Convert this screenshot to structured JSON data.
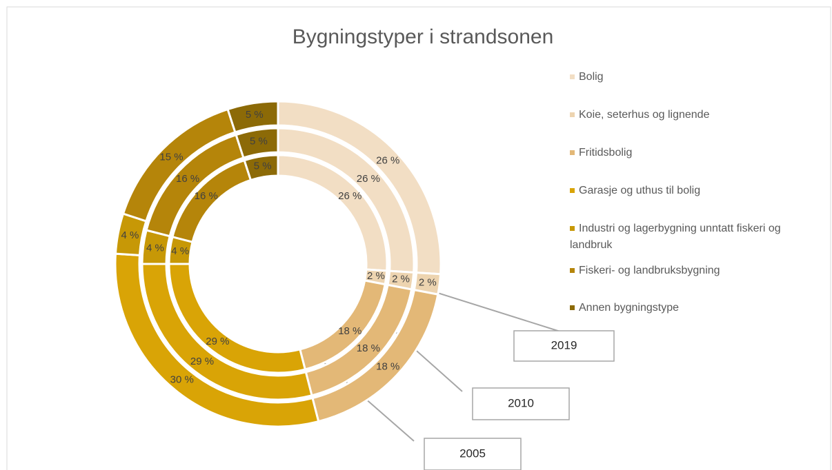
{
  "chart_data": {
    "type": "donut",
    "title": "Bygningstyper i strandsonen",
    "categories": [
      "Bolig",
      "Koie, seterhus og lignende",
      "Fritidsbolig",
      "Garasje og uthus til bolig",
      "Industri og lagerbygning unntatt fiskeri og landbruk",
      "Fiskeri- og landbruksbygning",
      "Annen bygningstype"
    ],
    "colors": [
      "#f2dec4",
      "#edd4b0",
      "#e3b877",
      "#d9a406",
      "#c79806",
      "#b5850a",
      "#8c6a07"
    ],
    "series": [
      {
        "name": "2005",
        "values": [
          26,
          2,
          18,
          29,
          4,
          16,
          5
        ],
        "value_labels": [
          "26 %",
          "2 %",
          "18 %",
          "29 %",
          "4 %",
          "16 %",
          "5 %"
        ]
      },
      {
        "name": "2010",
        "values": [
          26,
          2,
          18,
          29,
          4,
          16,
          5
        ],
        "value_labels": [
          "26 %",
          "2 %",
          "18 %",
          "29 %",
          "4 %",
          "16 %",
          "5 %"
        ]
      },
      {
        "name": "2019",
        "values": [
          26,
          2,
          18,
          30,
          4,
          15,
          5
        ],
        "value_labels": [
          "26 %",
          "2 %",
          "18 %",
          "30 %",
          "4 %",
          "15 %",
          "5 %"
        ]
      }
    ],
    "legend": "right"
  }
}
